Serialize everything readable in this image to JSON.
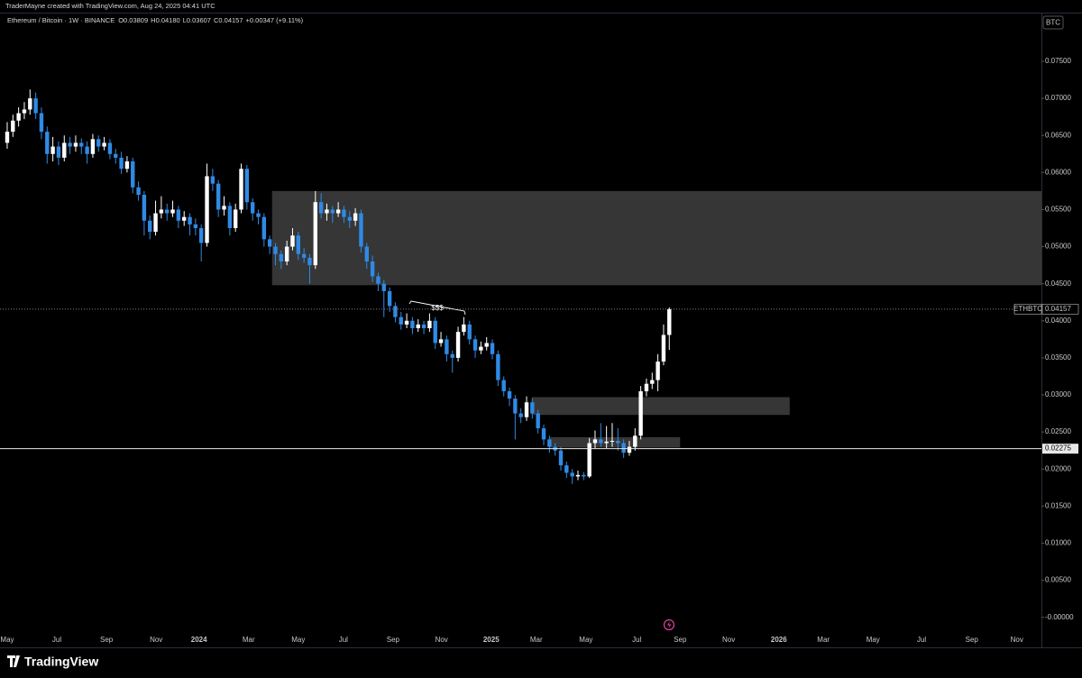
{
  "chart_data": {
    "type": "candlestick",
    "header": "TraderMayne created with TradingView.com, Aug 24, 2025 04:41 UTC",
    "symbol": "Ethereum / Bitcoin · 1W · BINANCE",
    "ohlc_legend": [
      "O0.03809",
      "H0.04180",
      "L0.03607",
      "C0.04157",
      "+0.00347 (+9.11%)"
    ],
    "currency": "BTC",
    "ticker": "ETHBTC",
    "footer": "TradingView",
    "annotation": "$$$",
    "up_color": "#ffffff",
    "down_color": "#2f8ae5",
    "zone_color": "#363636",
    "xlim": [
      -1.26,
      181.2
    ],
    "ylim": [
      -0.00186,
      0.08108
    ],
    "yticks": [
      {
        "value": 0,
        "label": "-0.00000"
      },
      {
        "value": 0.005,
        "label": "0.00500"
      },
      {
        "value": 0.01,
        "label": "0.01000"
      },
      {
        "value": 0.015,
        "label": "0.01500"
      },
      {
        "value": 0.02,
        "label": "0.02000"
      },
      {
        "value": 0.025,
        "label": "0.02500"
      },
      {
        "value": 0.03,
        "label": "0.03000"
      },
      {
        "value": 0.035,
        "label": "0.03500"
      },
      {
        "value": 0.04,
        "label": "0.04000"
      },
      {
        "value": 0.045,
        "label": "0.04500"
      },
      {
        "value": 0.05,
        "label": "0.05000"
      },
      {
        "value": 0.055,
        "label": "0.05500"
      },
      {
        "value": 0.06,
        "label": "0.06000"
      },
      {
        "value": 0.065,
        "label": "0.06500"
      },
      {
        "value": 0.07,
        "label": "0.07000"
      },
      {
        "value": 0.075,
        "label": "0.07500"
      }
    ],
    "xticks": [
      {
        "value": 0,
        "label": "May"
      },
      {
        "value": 8.7,
        "label": "Jul"
      },
      {
        "value": 17.4,
        "label": "Sep"
      },
      {
        "value": 26.1,
        "label": "Nov"
      },
      {
        "value": 33.6,
        "label": "2024"
      },
      {
        "value": 42.3,
        "label": "Mar"
      },
      {
        "value": 51,
        "label": "May"
      },
      {
        "value": 58.9,
        "label": "Jul"
      },
      {
        "value": 67.6,
        "label": "Sep"
      },
      {
        "value": 76.1,
        "label": "Nov"
      },
      {
        "value": 84.8,
        "label": "2025"
      },
      {
        "value": 92.7,
        "label": "Mar"
      },
      {
        "value": 101.4,
        "label": "May"
      },
      {
        "value": 110.3,
        "label": "Jul"
      },
      {
        "value": 117.9,
        "label": "Sep"
      },
      {
        "value": 126.4,
        "label": "Nov"
      },
      {
        "value": 135.2,
        "label": "2026"
      },
      {
        "value": 143,
        "label": "Mar"
      },
      {
        "value": 151.7,
        "label": "May"
      },
      {
        "value": 160.2,
        "label": "Jul"
      },
      {
        "value": 169,
        "label": "Sep"
      },
      {
        "value": 176.9,
        "label": "Nov"
      }
    ],
    "hline": 0.02275,
    "zones": [
      {
        "x": [
          46.4,
          181.2
        ],
        "y": [
          0.0448,
          0.0575
        ]
      },
      {
        "x": [
          91.9,
          137.1
        ],
        "y": [
          0.0273,
          0.0297
        ]
      },
      {
        "x": [
          95.1,
          117.9
        ],
        "y": [
          0.0229,
          0.0243
        ]
      }
    ],
    "ohlc": [
      [
        0.064,
        0.0668,
        0.0632,
        0.0655
      ],
      [
        0.0655,
        0.0678,
        0.0648,
        0.067
      ],
      [
        0.067,
        0.0688,
        0.0662,
        0.068
      ],
      [
        0.068,
        0.0695,
        0.0672,
        0.0685
      ],
      [
        0.0685,
        0.0712,
        0.0678,
        0.07
      ],
      [
        0.07,
        0.0708,
        0.0672,
        0.068
      ],
      [
        0.068,
        0.0688,
        0.0645,
        0.0655
      ],
      [
        0.0655,
        0.0662,
        0.0612,
        0.0625
      ],
      [
        0.0625,
        0.0648,
        0.0615,
        0.0635
      ],
      [
        0.0635,
        0.0642,
        0.061,
        0.062
      ],
      [
        0.062,
        0.065,
        0.0615,
        0.064
      ],
      [
        0.064,
        0.0648,
        0.0625,
        0.0635
      ],
      [
        0.0635,
        0.065,
        0.0628,
        0.064
      ],
      [
        0.064,
        0.0646,
        0.0625,
        0.0635
      ],
      [
        0.0635,
        0.0642,
        0.0612,
        0.0625
      ],
      [
        0.0625,
        0.0652,
        0.062,
        0.0645
      ],
      [
        0.0645,
        0.065,
        0.0628,
        0.0635
      ],
      [
        0.0635,
        0.0648,
        0.063,
        0.064
      ],
      [
        0.064,
        0.0645,
        0.0618,
        0.0625
      ],
      [
        0.0625,
        0.0632,
        0.0612,
        0.062
      ],
      [
        0.062,
        0.0628,
        0.0598,
        0.0605
      ],
      [
        0.0605,
        0.0622,
        0.06,
        0.0615
      ],
      [
        0.0615,
        0.062,
        0.0572,
        0.058
      ],
      [
        0.058,
        0.0588,
        0.0562,
        0.057
      ],
      [
        0.057,
        0.0575,
        0.0515,
        0.0535
      ],
      [
        0.0535,
        0.0542,
        0.051,
        0.052
      ],
      [
        0.052,
        0.0562,
        0.0515,
        0.0545
      ],
      [
        0.0545,
        0.0568,
        0.0538,
        0.055
      ],
      [
        0.055,
        0.0558,
        0.0535,
        0.0545
      ],
      [
        0.0545,
        0.0562,
        0.054,
        0.055
      ],
      [
        0.055,
        0.0555,
        0.0525,
        0.0535
      ],
      [
        0.0535,
        0.0548,
        0.0528,
        0.054
      ],
      [
        0.054,
        0.0545,
        0.0515,
        0.053
      ],
      [
        0.053,
        0.0538,
        0.0515,
        0.0525
      ],
      [
        0.0525,
        0.053,
        0.048,
        0.0505
      ],
      [
        0.0505,
        0.0612,
        0.05,
        0.0595
      ],
      [
        0.0595,
        0.0605,
        0.0575,
        0.0585
      ],
      [
        0.0585,
        0.059,
        0.054,
        0.055
      ],
      [
        0.055,
        0.0568,
        0.0542,
        0.0555
      ],
      [
        0.0555,
        0.056,
        0.0515,
        0.0525
      ],
      [
        0.0525,
        0.0558,
        0.052,
        0.055
      ],
      [
        0.055,
        0.0612,
        0.0545,
        0.0605
      ],
      [
        0.0605,
        0.061,
        0.055,
        0.056
      ],
      [
        0.056,
        0.0565,
        0.0535,
        0.0545
      ],
      [
        0.0545,
        0.055,
        0.053,
        0.054
      ],
      [
        0.054,
        0.0545,
        0.05,
        0.051
      ],
      [
        0.051,
        0.0515,
        0.049,
        0.05
      ],
      [
        0.05,
        0.0505,
        0.0475,
        0.049
      ],
      [
        0.049,
        0.0495,
        0.047,
        0.048
      ],
      [
        0.048,
        0.0508,
        0.0475,
        0.05
      ],
      [
        0.05,
        0.0525,
        0.0495,
        0.0515
      ],
      [
        0.0515,
        0.052,
        0.0482,
        0.049
      ],
      [
        0.049,
        0.0498,
        0.0478,
        0.0485
      ],
      [
        0.0485,
        0.049,
        0.045,
        0.0475
      ],
      [
        0.0475,
        0.0575,
        0.047,
        0.056
      ],
      [
        0.056,
        0.0572,
        0.0538,
        0.0545
      ],
      [
        0.0545,
        0.0558,
        0.0535,
        0.055
      ],
      [
        0.055,
        0.0555,
        0.0532,
        0.0545
      ],
      [
        0.0545,
        0.056,
        0.054,
        0.055
      ],
      [
        0.055,
        0.0555,
        0.0532,
        0.054
      ],
      [
        0.054,
        0.0548,
        0.0525,
        0.0535
      ],
      [
        0.0535,
        0.0552,
        0.0528,
        0.0545
      ],
      [
        0.0545,
        0.055,
        0.0492,
        0.05
      ],
      [
        0.05,
        0.0505,
        0.047,
        0.048
      ],
      [
        0.048,
        0.0488,
        0.0452,
        0.046
      ],
      [
        0.046,
        0.0465,
        0.044,
        0.045
      ],
      [
        0.045,
        0.0455,
        0.0405,
        0.044
      ],
      [
        0.044,
        0.0445,
        0.0412,
        0.042
      ],
      [
        0.042,
        0.0425,
        0.0398,
        0.0405
      ],
      [
        0.0405,
        0.0412,
        0.0388,
        0.0395
      ],
      [
        0.0395,
        0.041,
        0.039,
        0.04
      ],
      [
        0.04,
        0.0405,
        0.0382,
        0.039
      ],
      [
        0.039,
        0.0402,
        0.0385,
        0.0395
      ],
      [
        0.0395,
        0.04,
        0.0382,
        0.039
      ],
      [
        0.039,
        0.041,
        0.0385,
        0.04
      ],
      [
        0.04,
        0.0405,
        0.0362,
        0.037
      ],
      [
        0.037,
        0.0385,
        0.0365,
        0.0375
      ],
      [
        0.0375,
        0.038,
        0.0345,
        0.0355
      ],
      [
        0.0355,
        0.036,
        0.033,
        0.035
      ],
      [
        0.035,
        0.0392,
        0.0345,
        0.0385
      ],
      [
        0.0385,
        0.0405,
        0.038,
        0.0395
      ],
      [
        0.0395,
        0.04,
        0.0368,
        0.0375
      ],
      [
        0.0375,
        0.038,
        0.035,
        0.036
      ],
      [
        0.036,
        0.0372,
        0.0355,
        0.0365
      ],
      [
        0.0365,
        0.0378,
        0.036,
        0.037
      ],
      [
        0.037,
        0.0375,
        0.0348,
        0.0355
      ],
      [
        0.0355,
        0.036,
        0.0312,
        0.032
      ],
      [
        0.032,
        0.0325,
        0.0298,
        0.0305
      ],
      [
        0.0305,
        0.031,
        0.0285,
        0.0295
      ],
      [
        0.0295,
        0.03,
        0.024,
        0.0275
      ],
      [
        0.0275,
        0.0282,
        0.0262,
        0.027
      ],
      [
        0.027,
        0.0298,
        0.0265,
        0.029
      ],
      [
        0.029,
        0.0295,
        0.0268,
        0.0275
      ],
      [
        0.0275,
        0.028,
        0.0248,
        0.0255
      ],
      [
        0.0255,
        0.026,
        0.0232,
        0.024
      ],
      [
        0.024,
        0.0245,
        0.0222,
        0.023
      ],
      [
        0.023,
        0.0235,
        0.0218,
        0.0225
      ],
      [
        0.0225,
        0.023,
        0.0198,
        0.0205
      ],
      [
        0.0205,
        0.021,
        0.0188,
        0.0195
      ],
      [
        0.0195,
        0.02,
        0.018,
        0.019
      ],
      [
        0.019,
        0.0198,
        0.0185,
        0.0192
      ],
      [
        0.0192,
        0.0196,
        0.0185,
        0.019
      ],
      [
        0.019,
        0.0242,
        0.0188,
        0.0235
      ],
      [
        0.0235,
        0.0252,
        0.0228,
        0.024
      ],
      [
        0.024,
        0.0262,
        0.023,
        0.0235
      ],
      [
        0.0235,
        0.0258,
        0.0228,
        0.0237
      ],
      [
        0.0237,
        0.0262,
        0.023,
        0.0238
      ],
      [
        0.0238,
        0.0255,
        0.0225,
        0.0235
      ],
      [
        0.0235,
        0.024,
        0.0215,
        0.0222
      ],
      [
        0.0222,
        0.0238,
        0.0218,
        0.023
      ],
      [
        0.023,
        0.0255,
        0.0225,
        0.0245
      ],
      [
        0.0245,
        0.0312,
        0.024,
        0.0305
      ],
      [
        0.0305,
        0.0322,
        0.0298,
        0.0315
      ],
      [
        0.0315,
        0.033,
        0.0308,
        0.032
      ],
      [
        0.032,
        0.0355,
        0.0305,
        0.0345
      ],
      [
        0.0345,
        0.0395,
        0.034,
        0.03809
      ],
      [
        0.03809,
        0.0418,
        0.03607,
        0.04157
      ]
    ]
  }
}
